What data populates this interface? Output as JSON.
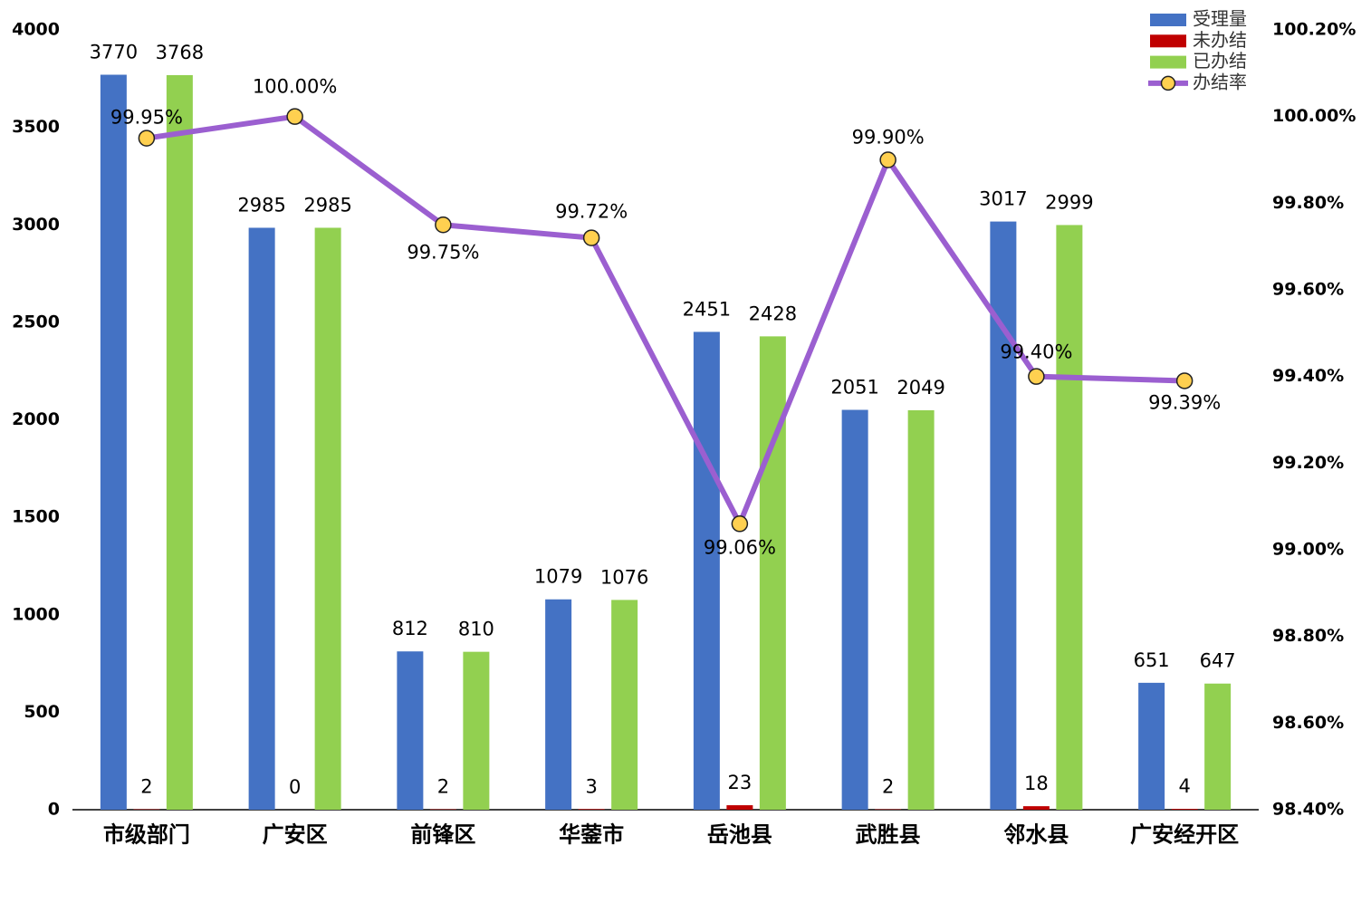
{
  "chart_data": {
    "type": "bar",
    "categories": [
      "市级部门",
      "广安区",
      "前锋区",
      "华蓥市",
      "岳池县",
      "武胜县",
      "邻水县",
      "广安经开区"
    ],
    "series": [
      {
        "name": "受理量",
        "color": "#4472c4",
        "values": [
          3770,
          2985,
          812,
          1079,
          2451,
          2051,
          3017,
          651
        ]
      },
      {
        "name": "未办结",
        "color": "#c00000",
        "values": [
          2,
          0,
          2,
          3,
          23,
          2,
          18,
          4
        ]
      },
      {
        "name": "已办结",
        "color": "#92d050",
        "values": [
          3768,
          2985,
          810,
          1076,
          2428,
          2049,
          2999,
          647
        ]
      },
      {
        "name": "办结率",
        "type": "line",
        "axis": "y2",
        "color": "#9b5fd0",
        "marker_color": "#ffd050",
        "values": [
          99.95,
          100.0,
          99.75,
          99.72,
          99.06,
          99.9,
          99.4,
          99.39
        ],
        "value_labels": [
          "99.95%",
          "100.00%",
          "99.75%",
          "99.72%",
          "99.06%",
          "99.90%",
          "99.40%",
          "99.39%"
        ]
      }
    ],
    "ylim": [
      0,
      4000
    ],
    "yticks": [
      0,
      500,
      1000,
      1500,
      2000,
      2500,
      3000,
      3500,
      4000
    ],
    "y2lim": [
      98.4,
      100.2
    ],
    "y2ticks": [
      {
        "value": 98.4,
        "label": "98.40%"
      },
      {
        "value": 98.6,
        "label": "98.60%"
      },
      {
        "value": 98.8,
        "label": "98.80%"
      },
      {
        "value": 99.0,
        "label": "99.00%"
      },
      {
        "value": 99.2,
        "label": "99.20%"
      },
      {
        "value": 99.4,
        "label": "99.40%"
      },
      {
        "value": 99.6,
        "label": "99.60%"
      },
      {
        "value": 99.8,
        "label": "99.80%"
      },
      {
        "value": 100.0,
        "label": "100.00%"
      },
      {
        "value": 100.2,
        "label": "100.20%"
      }
    ],
    "grid": false,
    "legend": "top-right"
  }
}
